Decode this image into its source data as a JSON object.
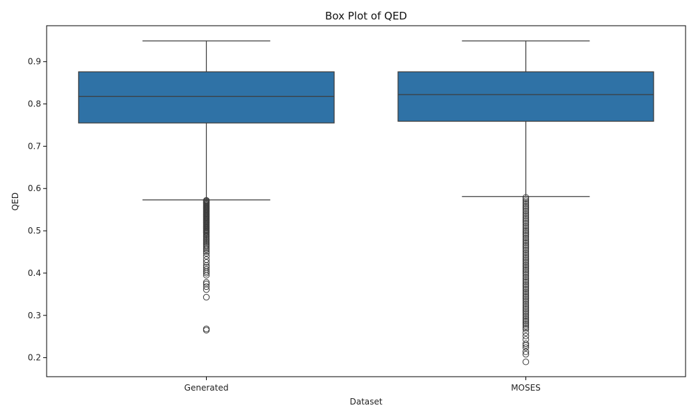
{
  "chart_data": {
    "type": "box",
    "title": "Box Plot of QED",
    "xlabel": "Dataset",
    "ylabel": "QED",
    "ylim": [
      0.155,
      0.985
    ],
    "yticks": [
      0.2,
      0.3,
      0.4,
      0.5,
      0.6,
      0.7,
      0.8,
      0.9
    ],
    "ytick_labels": [
      "0.2",
      "0.3",
      "0.4",
      "0.5",
      "0.6",
      "0.7",
      "0.8",
      "0.9"
    ],
    "categories": [
      "Generated",
      "MOSES"
    ],
    "grid": false,
    "box_color": "#2f72a6",
    "line_color": "#3d3d3d",
    "boxes": [
      {
        "name": "Generated",
        "whisker_low": 0.573,
        "q1": 0.755,
        "median": 0.818,
        "q3": 0.876,
        "whisker_high": 0.949,
        "outliers": [
          0.572,
          0.571,
          0.569,
          0.567,
          0.565,
          0.563,
          0.561,
          0.559,
          0.557,
          0.555,
          0.553,
          0.551,
          0.549,
          0.547,
          0.545,
          0.543,
          0.541,
          0.539,
          0.537,
          0.535,
          0.533,
          0.531,
          0.529,
          0.527,
          0.525,
          0.523,
          0.521,
          0.519,
          0.517,
          0.515,
          0.513,
          0.511,
          0.509,
          0.507,
          0.505,
          0.503,
          0.501,
          0.499,
          0.497,
          0.495,
          0.492,
          0.489,
          0.486,
          0.483,
          0.48,
          0.477,
          0.474,
          0.471,
          0.468,
          0.465,
          0.462,
          0.458,
          0.455,
          0.451,
          0.447,
          0.44,
          0.432,
          0.425,
          0.418,
          0.414,
          0.409,
          0.404,
          0.4,
          0.395,
          0.378,
          0.374,
          0.368,
          0.361,
          0.343,
          0.268,
          0.265
        ]
      },
      {
        "name": "MOSES",
        "whisker_low": 0.581,
        "q1": 0.759,
        "median": 0.822,
        "q3": 0.876,
        "whisker_high": 0.949,
        "outliers": [
          0.579,
          0.575,
          0.571,
          0.567,
          0.563,
          0.559,
          0.555,
          0.551,
          0.547,
          0.543,
          0.539,
          0.535,
          0.531,
          0.527,
          0.523,
          0.519,
          0.515,
          0.511,
          0.507,
          0.503,
          0.499,
          0.495,
          0.491,
          0.487,
          0.483,
          0.479,
          0.475,
          0.471,
          0.467,
          0.463,
          0.459,
          0.455,
          0.451,
          0.447,
          0.443,
          0.439,
          0.435,
          0.431,
          0.427,
          0.423,
          0.419,
          0.415,
          0.411,
          0.407,
          0.403,
          0.399,
          0.395,
          0.391,
          0.387,
          0.383,
          0.379,
          0.375,
          0.371,
          0.367,
          0.363,
          0.359,
          0.355,
          0.351,
          0.347,
          0.343,
          0.339,
          0.335,
          0.331,
          0.327,
          0.323,
          0.319,
          0.315,
          0.311,
          0.307,
          0.303,
          0.299,
          0.295,
          0.291,
          0.287,
          0.283,
          0.279,
          0.275,
          0.271,
          0.267,
          0.259,
          0.251,
          0.243,
          0.233,
          0.229,
          0.224,
          0.214,
          0.208,
          0.19
        ]
      }
    ]
  }
}
